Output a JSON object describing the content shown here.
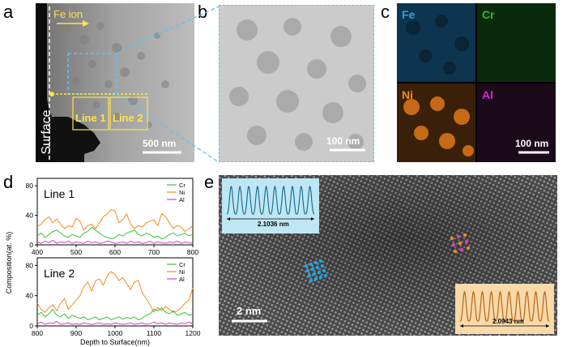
{
  "panels": {
    "a": {
      "label": "a",
      "fe_ion": "Fe ion",
      "surface": "Surface",
      "line1": "Line 1",
      "line2": "Line 2",
      "scale": "500 nm"
    },
    "b": {
      "label": "b",
      "scale": "100 nm"
    },
    "c": {
      "label": "c",
      "maps": [
        {
          "name": "Fe",
          "color": "#2ea3e0"
        },
        {
          "name": "Cr",
          "color": "#27c02e"
        },
        {
          "name": "Ni",
          "color": "#f08a25"
        },
        {
          "name": "Al",
          "color": "#e024d6"
        }
      ],
      "scale": "100 nm"
    },
    "d": {
      "label": "d",
      "ylabel": "Composition(at. %)",
      "xlabel": "Depth to Surface(nm)",
      "legend": [
        {
          "name": "Cr",
          "color": "#3cc23c"
        },
        {
          "name": "Ni",
          "color": "#f28c1c"
        },
        {
          "name": "Al",
          "color": "#d53ed1"
        }
      ]
    },
    "e": {
      "label": "e",
      "scale": "2 nm",
      "profile_top": "2.1036 nm",
      "profile_bottom": "2.0943 nm"
    }
  },
  "chart_data": [
    {
      "type": "line",
      "title": "Line 1",
      "xlim": [
        400,
        800
      ],
      "ylim": [
        0,
        90
      ],
      "xticks": [
        400,
        500,
        600,
        700,
        800
      ],
      "yticks": [
        0,
        40,
        80
      ],
      "series": [
        {
          "name": "Ni",
          "x": [
            400,
            410,
            420,
            430,
            440,
            450,
            460,
            470,
            480,
            490,
            500,
            510,
            520,
            530,
            540,
            550,
            560,
            570,
            580,
            590,
            600,
            610,
            620,
            630,
            640,
            650,
            660,
            670,
            680,
            690,
            700,
            710,
            720,
            730,
            740,
            750,
            760,
            770,
            780,
            790,
            800
          ],
          "values": [
            25,
            28,
            34,
            38,
            30,
            35,
            28,
            22,
            26,
            24,
            36,
            32,
            20,
            26,
            28,
            22,
            30,
            38,
            42,
            48,
            46,
            30,
            34,
            42,
            28,
            22,
            26,
            24,
            30,
            32,
            34,
            26,
            42,
            38,
            30,
            22,
            26,
            24,
            18,
            22,
            26
          ]
        },
        {
          "name": "Cr",
          "x": [
            400,
            410,
            420,
            430,
            440,
            450,
            460,
            470,
            480,
            490,
            500,
            510,
            520,
            530,
            540,
            550,
            560,
            570,
            580,
            590,
            600,
            610,
            620,
            630,
            640,
            650,
            660,
            670,
            680,
            690,
            700,
            710,
            720,
            730,
            740,
            750,
            760,
            770,
            780,
            790,
            800
          ],
          "values": [
            12,
            16,
            10,
            14,
            18,
            20,
            16,
            12,
            10,
            14,
            12,
            10,
            16,
            18,
            24,
            20,
            16,
            12,
            10,
            8,
            10,
            14,
            12,
            16,
            18,
            20,
            14,
            12,
            16,
            14,
            10,
            12,
            8,
            10,
            14,
            16,
            12,
            14,
            16,
            12,
            14
          ]
        },
        {
          "name": "Al",
          "x": [
            400,
            410,
            420,
            430,
            440,
            450,
            460,
            470,
            480,
            490,
            500,
            510,
            520,
            530,
            540,
            550,
            560,
            570,
            580,
            590,
            600,
            610,
            620,
            630,
            640,
            650,
            660,
            670,
            680,
            690,
            700,
            710,
            720,
            730,
            740,
            750,
            760,
            770,
            780,
            790,
            800
          ],
          "values": [
            4,
            2,
            5,
            3,
            6,
            2,
            4,
            3,
            5,
            2,
            4,
            3,
            2,
            5,
            3,
            4,
            2,
            3,
            5,
            4,
            2,
            3,
            4,
            2,
            5,
            3,
            4,
            2,
            3,
            5,
            2,
            4,
            3,
            2,
            4,
            3,
            5,
            2,
            4,
            3,
            2
          ]
        }
      ]
    },
    {
      "type": "line",
      "title": "Line 2",
      "xlim": [
        800,
        1200
      ],
      "ylim": [
        0,
        90
      ],
      "xticks": [
        800,
        900,
        1000,
        1100,
        1200
      ],
      "yticks": [
        0,
        40,
        80
      ],
      "series": [
        {
          "name": "Ni",
          "x": [
            800,
            810,
            820,
            830,
            840,
            850,
            860,
            870,
            880,
            890,
            900,
            910,
            920,
            930,
            940,
            950,
            960,
            970,
            980,
            990,
            1000,
            1010,
            1020,
            1030,
            1040,
            1050,
            1060,
            1070,
            1080,
            1090,
            1100,
            1110,
            1120,
            1130,
            1140,
            1150,
            1160,
            1170,
            1180,
            1190,
            1200
          ],
          "values": [
            30,
            22,
            18,
            24,
            28,
            20,
            30,
            36,
            22,
            28,
            34,
            40,
            52,
            58,
            46,
            60,
            62,
            54,
            66,
            72,
            68,
            60,
            64,
            56,
            48,
            58,
            60,
            44,
            36,
            28,
            18,
            24,
            20,
            26,
            22,
            18,
            20,
            24,
            30,
            34,
            50
          ]
        },
        {
          "name": "Cr",
          "x": [
            800,
            810,
            820,
            830,
            840,
            850,
            860,
            870,
            880,
            890,
            900,
            910,
            920,
            930,
            940,
            950,
            960,
            970,
            980,
            990,
            1000,
            1010,
            1020,
            1030,
            1040,
            1050,
            1060,
            1070,
            1080,
            1090,
            1100,
            1110,
            1120,
            1130,
            1140,
            1150,
            1160,
            1170,
            1180,
            1190,
            1200
          ],
          "values": [
            14,
            18,
            12,
            16,
            22,
            14,
            12,
            16,
            10,
            14,
            12,
            10,
            12,
            8,
            10,
            12,
            8,
            10,
            12,
            8,
            10,
            12,
            9,
            11,
            10,
            12,
            8,
            10,
            14,
            16,
            22,
            20,
            24,
            18,
            16,
            20,
            14,
            16,
            18,
            14,
            16
          ]
        },
        {
          "name": "Al",
          "x": [
            800,
            810,
            820,
            830,
            840,
            850,
            860,
            870,
            880,
            890,
            900,
            910,
            920,
            930,
            940,
            950,
            960,
            970,
            980,
            990,
            1000,
            1010,
            1020,
            1030,
            1040,
            1050,
            1060,
            1070,
            1080,
            1090,
            1100,
            1110,
            1120,
            1130,
            1140,
            1150,
            1160,
            1170,
            1180,
            1190,
            1200
          ],
          "values": [
            3,
            5,
            2,
            4,
            3,
            6,
            2,
            3,
            4,
            2,
            3,
            2,
            4,
            3,
            2,
            3,
            4,
            2,
            3,
            2,
            4,
            3,
            2,
            3,
            4,
            2,
            3,
            4,
            2,
            3,
            5,
            3,
            4,
            2,
            4,
            3,
            2,
            4,
            3,
            5,
            3
          ]
        }
      ]
    }
  ]
}
